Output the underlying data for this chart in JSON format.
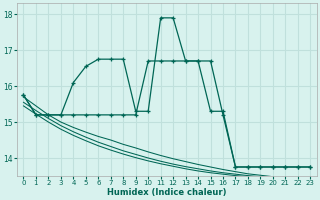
{
  "xlabel": "Humidex (Indice chaleur)",
  "background_color": "#d8f2ee",
  "grid_color": "#c0e0dc",
  "line_color": "#006655",
  "xlim": [
    -0.5,
    23.5
  ],
  "ylim": [
    13.5,
    18.3
  ],
  "yticks": [
    14,
    15,
    16,
    17,
    18
  ],
  "xticks": [
    0,
    1,
    2,
    3,
    4,
    5,
    6,
    7,
    8,
    9,
    10,
    11,
    12,
    13,
    14,
    15,
    16,
    17,
    18,
    19,
    20,
    21,
    22,
    23
  ],
  "series_jagged": [
    15.75,
    15.2,
    15.2,
    15.2,
    16.1,
    16.55,
    16.75,
    16.75,
    16.75,
    15.3,
    15.3,
    17.9,
    17.9,
    16.7,
    16.7,
    15.3,
    15.3,
    13.75,
    13.75,
    13.75,
    13.75,
    13.75,
    13.75,
    13.75
  ],
  "series_smooth": [
    15.75,
    15.2,
    15.2,
    15.2,
    15.2,
    15.2,
    15.2,
    15.2,
    15.2,
    15.2,
    16.7,
    16.7,
    16.7,
    16.7,
    16.7,
    16.7,
    15.2,
    13.75,
    13.75,
    13.75,
    13.75,
    13.75,
    13.75,
    13.75
  ],
  "series_diag1": [
    15.7,
    15.45,
    15.2,
    15.0,
    14.85,
    14.72,
    14.6,
    14.5,
    14.38,
    14.28,
    14.17,
    14.07,
    13.98,
    13.9,
    13.82,
    13.75,
    13.68,
    13.62,
    13.56,
    13.52,
    13.48,
    13.44,
    13.42,
    13.4
  ],
  "series_diag2": [
    15.55,
    15.32,
    15.1,
    14.9,
    14.73,
    14.58,
    14.44,
    14.32,
    14.2,
    14.1,
    14.0,
    13.91,
    13.83,
    13.76,
    13.7,
    13.64,
    13.59,
    13.55,
    13.51,
    13.48,
    13.45,
    13.43,
    13.41,
    13.4
  ],
  "series_diag3": [
    15.45,
    15.22,
    15.0,
    14.8,
    14.63,
    14.48,
    14.34,
    14.22,
    14.11,
    14.01,
    13.92,
    13.84,
    13.77,
    13.7,
    13.64,
    13.59,
    13.55,
    13.51,
    13.48,
    13.45,
    13.43,
    13.41,
    13.4,
    13.38
  ]
}
